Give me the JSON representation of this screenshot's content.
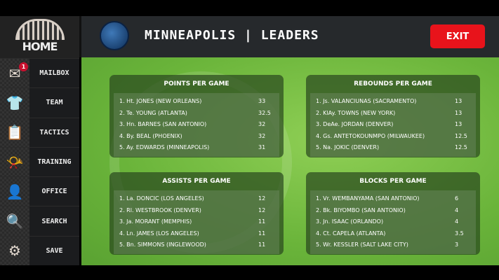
{
  "sidebar": {
    "home": "HOME",
    "items": [
      {
        "label": "MAILBOX",
        "icon": "mail-icon",
        "glyph": "✉",
        "badge": "1"
      },
      {
        "label": "TEAM",
        "icon": "jersey-icon",
        "glyph": "👕"
      },
      {
        "label": "TACTICS",
        "icon": "clipboard-icon",
        "glyph": "📋"
      },
      {
        "label": "TRAINING",
        "icon": "whistle-icon",
        "glyph": "📯"
      },
      {
        "label": "OFFICE",
        "icon": "person-icon",
        "glyph": "👤"
      },
      {
        "label": "SEARCH",
        "icon": "search-icon",
        "glyph": "🔍"
      },
      {
        "label": "SAVE",
        "icon": "gear-icon",
        "glyph": "⚙"
      }
    ]
  },
  "header": {
    "title": "MINNEAPOLIS | LEADERS",
    "exit": "EXIT"
  },
  "panels": [
    {
      "title": "POINTS PER GAME",
      "rows": [
        {
          "name": "1. Ht. JONES (NEW ORLEANS)",
          "value": "33"
        },
        {
          "name": "2. Te. YOUNG (ATLANTA)",
          "value": "32.5"
        },
        {
          "name": "3. Hn. BARNES (SAN ANTONIO)",
          "value": "32"
        },
        {
          "name": "4. By. BEAL (PHOENIX)",
          "value": "32"
        },
        {
          "name": "5. Ay. EDWARDS (MINNEAPOLIS)",
          "value": "31"
        }
      ]
    },
    {
      "title": "REBOUNDS PER GAME",
      "rows": [
        {
          "name": "1. Js. VALANCIUNAS (SACRAMENTO)",
          "value": "13"
        },
        {
          "name": "2. KlAy. TOWNS (NEW YORK)",
          "value": "13"
        },
        {
          "name": "3. DeAe. JORDAN (DENVER)",
          "value": "13"
        },
        {
          "name": "4. Gs. ANTETOKOUNMPO (MILWAUKEE)",
          "value": "12.5"
        },
        {
          "name": "5. Na. JOKIC (DENVER)",
          "value": "12.5"
        }
      ]
    },
    {
      "title": "ASSISTS PER GAME",
      "rows": [
        {
          "name": "1. La. DONCIC (LOS ANGELES)",
          "value": "12"
        },
        {
          "name": "2. Rl. WESTBROOK (DENVER)",
          "value": "12"
        },
        {
          "name": "3. Ja. MORANT (MEMPHIS)",
          "value": "11"
        },
        {
          "name": "4. Ln. JAMES (LOS ANGELES)",
          "value": "11"
        },
        {
          "name": "5. Bn. SIMMONS (INGLEWOOD)",
          "value": "11"
        }
      ]
    },
    {
      "title": "BLOCKS PER GAME",
      "rows": [
        {
          "name": "1. Vr. WEMBANYAMA (SAN ANTONIO)",
          "value": "6"
        },
        {
          "name": "2. Bk. BIYOMBO (SAN ANTONIO)",
          "value": "4"
        },
        {
          "name": "3. Jn. ISAAC (ORLANDO)",
          "value": "4"
        },
        {
          "name": "4. Ct. CAPELA (ATLANTA)",
          "value": "3.5"
        },
        {
          "name": "5. Wr. KESSLER (SALT LAKE CITY)",
          "value": "3"
        }
      ]
    }
  ]
}
